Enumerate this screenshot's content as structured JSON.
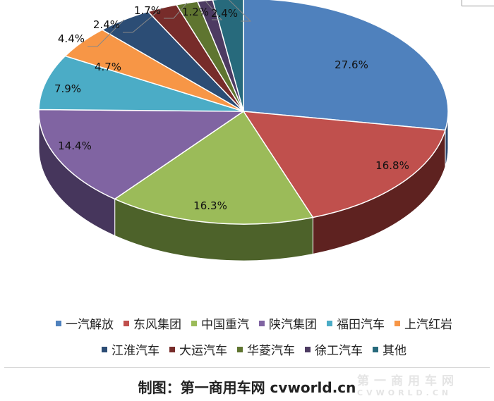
{
  "chart_data": {
    "type": "pie",
    "title": "",
    "legend_position": "bottom",
    "slices": [
      {
        "name": "一汽解放",
        "value": 27.6,
        "label": "27.6%",
        "color": "#4f81bd",
        "side": "#2a4870"
      },
      {
        "name": "东风集团",
        "value": 16.8,
        "label": "16.8%",
        "color": "#c0504d",
        "side": "#5e2220"
      },
      {
        "name": "中国重汽",
        "value": 16.3,
        "label": "16.3%",
        "color": "#9bbb59",
        "side": "#4d622a"
      },
      {
        "name": "陕汽集团",
        "value": 14.4,
        "label": "14.4%",
        "color": "#8064a2",
        "side": "#46365c"
      },
      {
        "name": "福田汽车",
        "value": 7.9,
        "label": "7.9%",
        "color": "#4bacc6",
        "side": "#236677"
      },
      {
        "name": "上汽红岩",
        "value": 4.7,
        "label": "4.7%",
        "color": "#f79646",
        "side": "#9a5520"
      },
      {
        "name": "江淮汽车",
        "value": 4.4,
        "label": "4.4%",
        "color": "#2c4d75",
        "side": "#172a40"
      },
      {
        "name": "大运汽车",
        "value": 2.4,
        "label": "2.4%",
        "color": "#772c2a",
        "side": "#401615"
      },
      {
        "name": "华菱汽车",
        "value": 1.7,
        "label": "1.7%",
        "color": "#5f7530",
        "side": "#33401a"
      },
      {
        "name": "徐工汽车",
        "value": 1.2,
        "label": "1.2%",
        "color": "#4d3b62",
        "side": "#2a2036"
      },
      {
        "name": "其他",
        "value": 2.4,
        "label": "2.4%",
        "color": "#276a7c",
        "side": "#143944"
      }
    ]
  },
  "footer": {
    "text": "制图：第一商用车网 cvworld.cn"
  },
  "watermark": {
    "top": "第一商用车网",
    "bottom": "CVWORLD.CN"
  }
}
